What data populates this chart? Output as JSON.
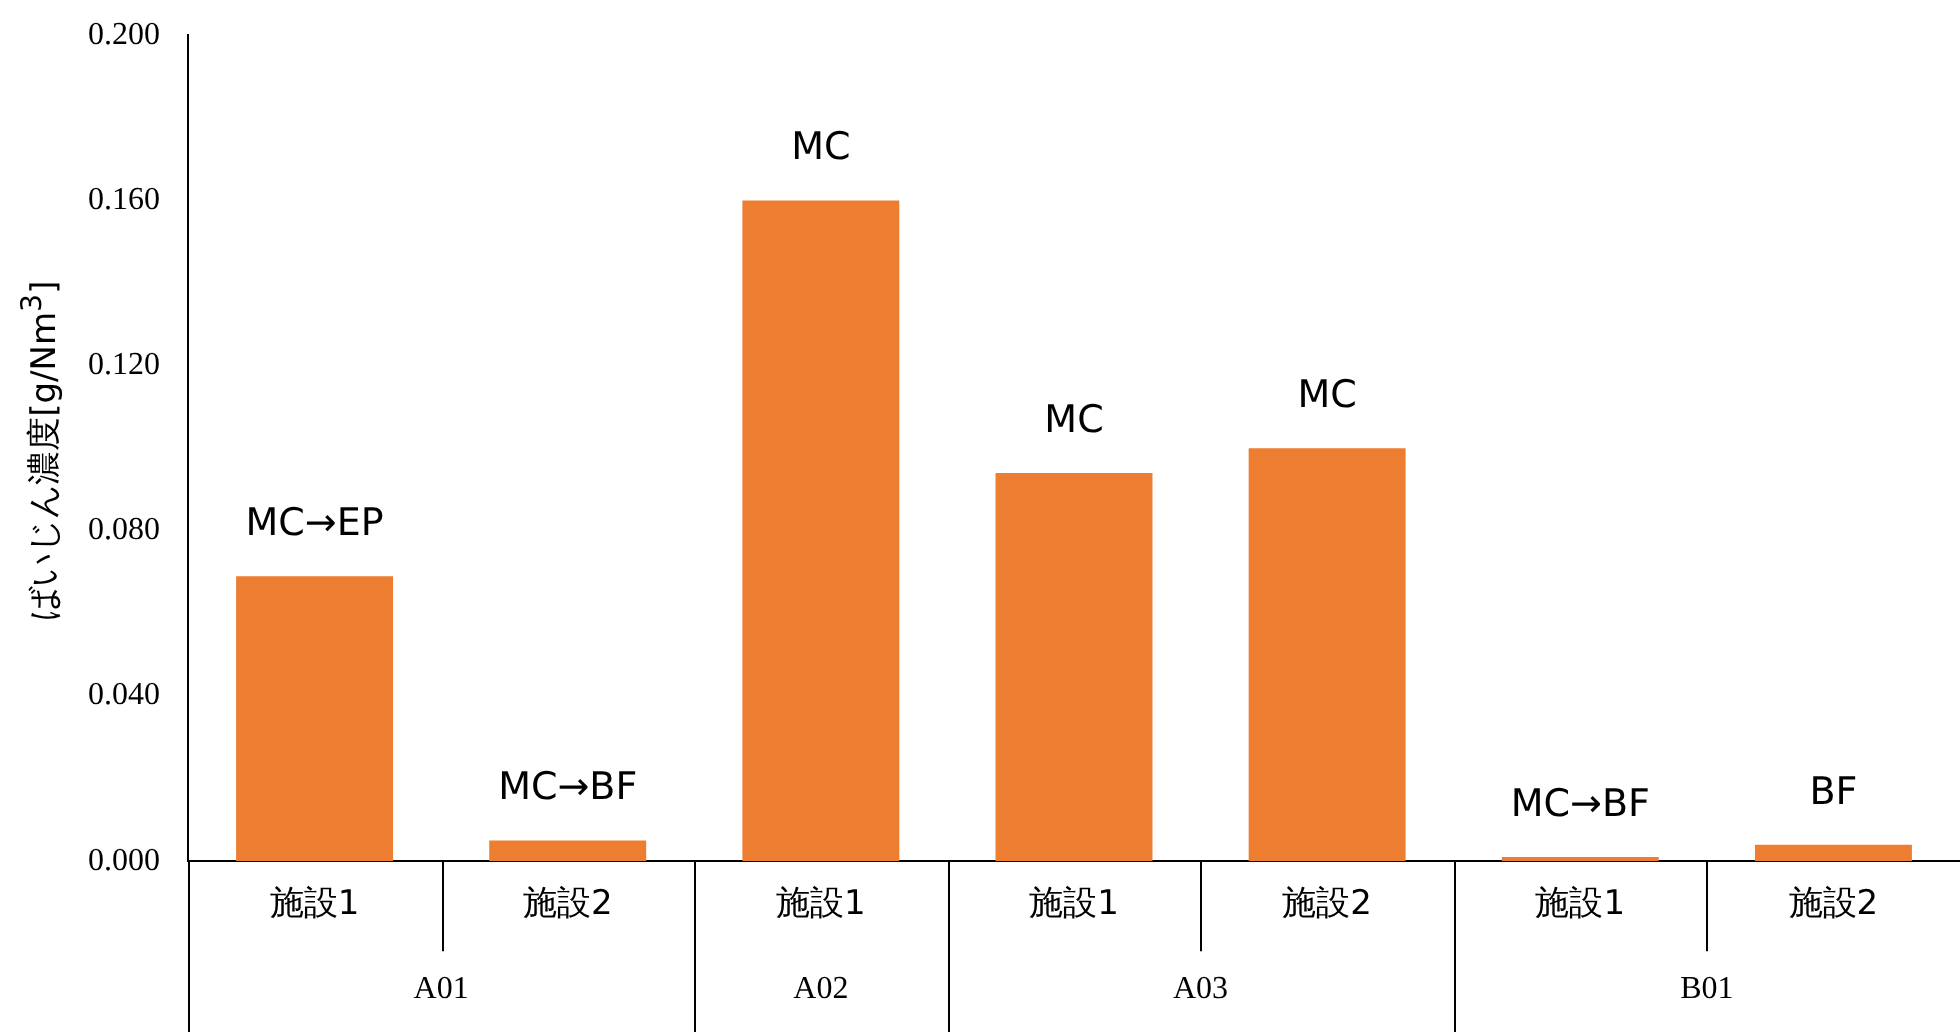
{
  "chart_data": {
    "type": "bar",
    "ylabel": "ばいじん濃度[g/Nm$^{3}$]",
    "categories": [
      "施設1",
      "施設2",
      "施設1",
      "施設1",
      "施設2",
      "施設1",
      "施設2"
    ],
    "values": [
      0.069,
      0.005,
      0.16,
      0.094,
      0.1,
      0.001,
      0.004
    ],
    "color": "#ed7d31",
    "ylim": [
      0,
      0.2
    ],
    "yticks": [
      {
        "value": 0,
        "label": "0.000"
      },
      {
        "value": 0.04,
        "label": "0.040"
      },
      {
        "value": 0.08,
        "label": "0.080"
      },
      {
        "value": 0.12,
        "label": "0.120"
      },
      {
        "value": 0.16,
        "label": "0.160"
      },
      {
        "value": 0.2,
        "label": "0.200"
      }
    ],
    "annotations": [
      "MC→EP",
      "MC→BF",
      "MC",
      "MC",
      "MC",
      "MC→BF",
      "BF",
      "A01",
      "A02",
      "A03",
      "B01"
    ],
    "grid": false,
    "legend": false
  }
}
